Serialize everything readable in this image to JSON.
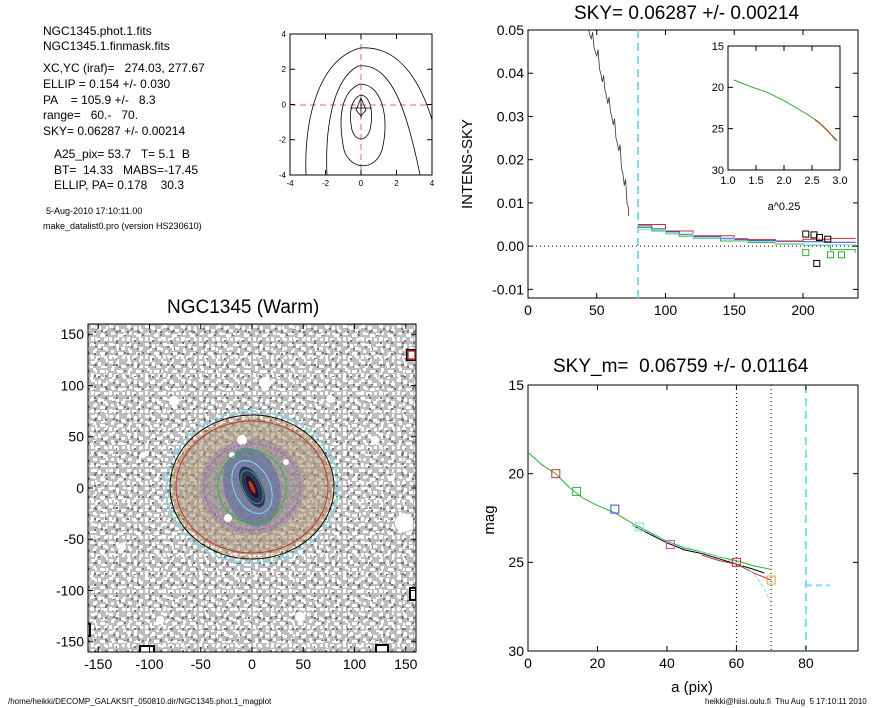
{
  "info": {
    "file1": "NGC1345.phot.1.fits",
    "file2": "NGC1345.1.finmask.fits",
    "xcyc": "XC,YC (iraf)=   274.03, 277.67",
    "ellip": "ELLIP = 0.154 +/- 0.030",
    "pa": "PA    = 105.9 +/-   8.3",
    "range": "range=   60.-   70.",
    "sky": "SKY= 0.06287 +/- 0.00214",
    "a25": "A25_pix= 53.7   T= 5.1  B",
    "bt": "BT=  14.33   MABS=-17.45",
    "ellippa": "ELLIP, PA= 0.178    30.3",
    "date": "5-Aug-2010 17:10:11.00",
    "program": "make_datalist0.pro (version HS230610)"
  },
  "footer": {
    "path": "/home/heikki/DECOMP_GALAKSIT_050810.dir/NGC1345.phot.1_magplot",
    "user": "heikki@hiisi.oulu.fi  Thu Aug  5 17:10:11 2010"
  },
  "colors": {
    "cyan_dash": "#7fdcea",
    "pink_dash": "#e86a6a",
    "green": "#2fb02f",
    "red": "#c83030",
    "blue": "#3050d0",
    "magenta": "#d040c0",
    "orange": "#e0a020",
    "gray_texture": "#8a8a8a"
  },
  "chart_data": [
    {
      "id": "contour",
      "type": "contour",
      "xlim": [
        -4,
        4
      ],
      "ylim": [
        -4,
        4
      ],
      "xticks": [
        "-4",
        "-2",
        "0",
        "2",
        "4"
      ],
      "yticks": [
        "4",
        "2",
        "0",
        "-2",
        "-4"
      ]
    },
    {
      "id": "sky",
      "type": "line",
      "title": "SKY= 0.06287 +/- 0.00214",
      "ylabel": "INTENS-SKY",
      "xlim": [
        0,
        240
      ],
      "ylim": [
        -0.012,
        0.05
      ],
      "xticks": [
        "0",
        "50",
        "100",
        "150",
        "200"
      ],
      "yticks": [
        "0.05",
        "0.04",
        "0.03",
        "0.02",
        "0.01",
        "0.00",
        "-0.01"
      ],
      "sky_fit_x": 80,
      "profile": [
        [
          44,
          0.05
        ],
        [
          46,
          0.048
        ],
        [
          48,
          0.046
        ],
        [
          50,
          0.044
        ],
        [
          52,
          0.041
        ],
        [
          54,
          0.038
        ],
        [
          56,
          0.036
        ],
        [
          58,
          0.033
        ],
        [
          60,
          0.031
        ],
        [
          62,
          0.028
        ],
        [
          64,
          0.025
        ],
        [
          66,
          0.022
        ],
        [
          68,
          0.018
        ],
        [
          70,
          0.014
        ],
        [
          72,
          0.01
        ],
        [
          73,
          0.007
        ]
      ],
      "series": [
        {
          "name": "",
          "color": "#3050d0",
          "values": [
            [
              80,
              0.0047
            ],
            [
              90,
              0.004
            ],
            [
              100,
              0.0033
            ],
            [
              110,
              0.0027
            ],
            [
              120,
              0.0022
            ],
            [
              140,
              0.0017
            ],
            [
              160,
              0.0013
            ],
            [
              180,
              0.0011
            ],
            [
              200,
              0.001
            ],
            [
              220,
              0.0009
            ],
            [
              238,
              0.0008
            ]
          ]
        },
        {
          "name": "",
          "color": "#2fb02f",
          "values": [
            [
              80,
              0.0043
            ],
            [
              90,
              0.0035
            ],
            [
              100,
              0.0029
            ],
            [
              110,
              0.0023
            ],
            [
              120,
              0.0018
            ],
            [
              140,
              0.0012
            ],
            [
              160,
              0.0008
            ],
            [
              180,
              0.0005
            ],
            [
              200,
              0.0002
            ],
            [
              220,
              -0.0008
            ],
            [
              238,
              -0.0015
            ]
          ]
        },
        {
          "name": "",
          "color": "#c83030",
          "values": [
            [
              80,
              0.005
            ],
            [
              100,
              0.0035
            ],
            [
              120,
              0.0024
            ],
            [
              150,
              0.0015
            ],
            [
              180,
              0.0012
            ],
            [
              200,
              0.0016
            ],
            [
              220,
              0.0018
            ],
            [
              238,
              0.0017
            ]
          ]
        },
        {
          "name": "",
          "color": "#7fdcea",
          "values": [
            [
              80,
              0.0038
            ],
            [
              100,
              0.0028
            ],
            [
              120,
              0.0019
            ],
            [
              150,
              0.0011
            ],
            [
              180,
              0.0006
            ],
            [
              200,
              0.0003
            ],
            [
              238,
              0.0
            ]
          ]
        }
      ],
      "markers": [
        {
          "color": "#000000",
          "points": [
            [
              202,
              0.0028
            ],
            [
              208,
              0.0026
            ],
            [
              212,
              0.002
            ],
            [
              218,
              0.0016
            ],
            [
              210,
              -0.004
            ]
          ]
        },
        {
          "color": "#2fb02f",
          "points": [
            [
              202,
              -0.0015
            ],
            [
              220,
              -0.002
            ],
            [
              228,
              -0.002
            ]
          ]
        }
      ],
      "inset": {
        "xlim": [
          1.0,
          3.0
        ],
        "ylim": [
          15,
          30
        ],
        "xlabel": "a^0.25",
        "xticks": [
          "1.0",
          "1.5",
          "2.0",
          "2.5",
          "3.0"
        ],
        "yticks": [
          "15",
          "20",
          "25",
          "30"
        ],
        "series": [
          {
            "name": "",
            "color": "#2fb02f",
            "values": [
              [
                1.1,
                19.1
              ],
              [
                1.4,
                19.9
              ],
              [
                1.7,
                20.6
              ],
              [
                2.0,
                21.6
              ],
              [
                2.2,
                22.4
              ],
              [
                2.4,
                23.2
              ],
              [
                2.6,
                24.1
              ],
              [
                2.75,
                25.1
              ],
              [
                2.85,
                25.8
              ],
              [
                2.92,
                26.4
              ]
            ]
          },
          {
            "name": "",
            "color": "#c83030",
            "values": [
              [
                2.55,
                23.9
              ],
              [
                2.7,
                24.7
              ],
              [
                2.8,
                25.4
              ],
              [
                2.9,
                26.1
              ],
              [
                2.95,
                26.5
              ]
            ]
          }
        ]
      }
    },
    {
      "id": "image",
      "type": "image",
      "title": "NGC1345 (Warm)",
      "xlim": [
        -160,
        160
      ],
      "ylim": [
        -160,
        160
      ],
      "xticks": [
        "-150",
        "-100",
        "-50",
        "0",
        "50",
        "100",
        "150"
      ],
      "yticks": [
        "150",
        "100",
        "50",
        "0",
        "-50",
        "-100",
        "-150"
      ]
    },
    {
      "id": "mag",
      "type": "line",
      "title": "SKY_m=  0.06759 +/- 0.01164",
      "xlabel": "a (pix)",
      "ylabel": "mag",
      "xlim": [
        0,
        95
      ],
      "ylim": [
        30,
        15
      ],
      "xticks": [
        "0",
        "20",
        "40",
        "60",
        "80"
      ],
      "yticks": [
        "15",
        "20",
        "25",
        "30"
      ],
      "vlines": [
        60,
        70
      ],
      "sky_fit_x": 80,
      "series": [
        {
          "name": "",
          "color": "#2fb02f",
          "values": [
            [
              0,
              18.8
            ],
            [
              4,
              19.5
            ],
            [
              8,
              20.0
            ],
            [
              12,
              20.8
            ],
            [
              16,
              21.4
            ],
            [
              20,
              21.8
            ],
            [
              25,
              22.2
            ],
            [
              30,
              22.8
            ],
            [
              35,
              23.3
            ],
            [
              40,
              23.8
            ],
            [
              45,
              24.2
            ],
            [
              50,
              24.4
            ],
            [
              55,
              24.7
            ],
            [
              60,
              24.9
            ],
            [
              65,
              25.2
            ],
            [
              70,
              25.4
            ]
          ]
        },
        {
          "name": "",
          "color": "#000000",
          "values": [
            [
              30,
              22.9
            ],
            [
              35,
              23.4
            ],
            [
              40,
              23.9
            ],
            [
              45,
              24.3
            ],
            [
              50,
              24.5
            ],
            [
              55,
              24.8
            ],
            [
              60,
              25.1
            ],
            [
              65,
              25.4
            ],
            [
              68,
              25.6
            ]
          ]
        },
        {
          "name": "",
          "color": "#c83030",
          "values": [
            [
              50,
              24.6
            ],
            [
              55,
              24.9
            ],
            [
              60,
              25.1
            ],
            [
              65,
              25.6
            ],
            [
              70,
              26.0
            ]
          ]
        },
        {
          "name": "",
          "color": "#7fdcea",
          "values": [
            [
              30,
              22.9
            ],
            [
              40,
              23.8
            ],
            [
              50,
              24.4
            ],
            [
              60,
              25.0
            ],
            [
              65,
              25.6
            ],
            [
              68,
              26.5
            ],
            [
              70,
              27.3
            ]
          ]
        }
      ],
      "markers": [
        {
          "color": "#c83030",
          "points": [
            [
              8,
              20.0
            ],
            [
              60,
              25.0
            ]
          ]
        },
        {
          "color": "#2fb02f",
          "points": [
            [
              14,
              21.0
            ]
          ]
        },
        {
          "color": "#3050d0",
          "points": [
            [
              25,
              22.0
            ]
          ]
        },
        {
          "color": "#7fdcea",
          "points": [
            [
              32,
              23.0
            ]
          ]
        },
        {
          "color": "#d040c0",
          "points": [
            [
              41,
              24.0
            ]
          ]
        },
        {
          "color": "#e0a020",
          "points": [
            [
              70,
              26.0
            ]
          ]
        }
      ],
      "sky_level": 26.3
    }
  ]
}
